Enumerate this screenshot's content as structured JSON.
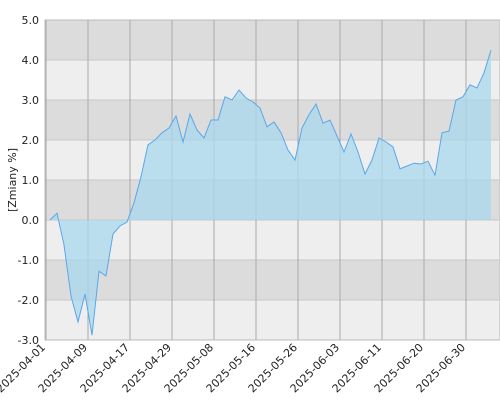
{
  "chart_data": {
    "type": "area",
    "y_label": "[Zmiany %]",
    "categories": [
      "2025-04-01",
      null,
      null,
      null,
      null,
      null,
      "2025-04-09",
      null,
      null,
      null,
      null,
      null,
      "2025-04-17",
      null,
      null,
      null,
      null,
      null,
      "2025-04-29",
      null,
      null,
      null,
      null,
      null,
      "2025-05-08",
      null,
      null,
      null,
      null,
      null,
      "2025-05-16",
      null,
      null,
      null,
      null,
      null,
      "2025-05-26",
      null,
      null,
      null,
      null,
      null,
      "2025-06-03",
      null,
      null,
      null,
      null,
      null,
      "2025-06-11",
      null,
      null,
      null,
      null,
      null,
      "2025-06-20",
      null,
      null,
      null,
      null,
      null,
      "2025-06-30",
      null,
      null,
      null
    ],
    "values": [
      0.0,
      0.17,
      -0.62,
      -1.9,
      -2.55,
      -1.85,
      -2.88,
      -1.28,
      -1.4,
      -0.35,
      -0.15,
      -0.05,
      0.43,
      1.08,
      1.88,
      2.0,
      2.18,
      2.3,
      2.6,
      1.95,
      2.65,
      2.25,
      2.05,
      2.5,
      2.5,
      3.08,
      3.0,
      3.25,
      3.05,
      2.95,
      2.8,
      2.33,
      2.45,
      2.18,
      1.75,
      1.5,
      2.3,
      2.63,
      2.9,
      2.42,
      2.5,
      2.1,
      1.7,
      2.15,
      1.7,
      1.15,
      1.5,
      2.05,
      1.95,
      1.83,
      1.28,
      1.35,
      1.42,
      1.4,
      1.47,
      1.12,
      2.18,
      2.22,
      3.0,
      3.08,
      3.38,
      3.3,
      3.68,
      4.25
    ],
    "color": "#5aa7e8",
    "fill": "#a8d8ee",
    "ylim": [
      -3.0,
      5.0
    ],
    "yticks": [
      {
        "value": -3,
        "label": "-3.0"
      },
      {
        "value": -2,
        "label": "-2.0"
      },
      {
        "value": -1,
        "label": "-1.0"
      },
      {
        "value": 0,
        "label": "0.0"
      },
      {
        "value": 1,
        "label": "1.0"
      },
      {
        "value": 2,
        "label": "2.0"
      },
      {
        "value": 3,
        "label": "3.0"
      },
      {
        "value": 4,
        "label": "4.0"
      },
      {
        "value": 5,
        "label": "5.0"
      }
    ],
    "grid": true
  }
}
